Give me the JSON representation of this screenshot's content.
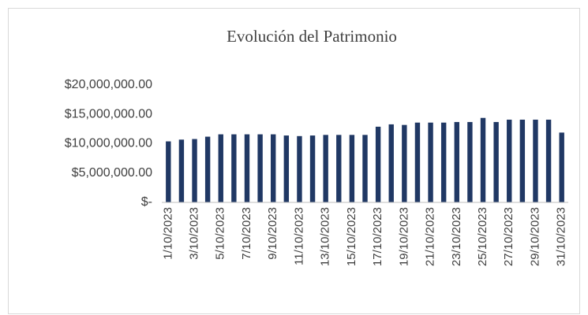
{
  "chart_data": {
    "type": "bar",
    "title": "Evolución del Patrimonio",
    "categories": [
      "1/10/2023",
      null,
      "3/10/2023",
      null,
      "5/10/2023",
      null,
      "7/10/2023",
      null,
      "9/10/2023",
      null,
      "11/10/2023",
      null,
      "13/10/2023",
      null,
      "15/10/2023",
      null,
      "17/10/2023",
      null,
      "19/10/2023",
      null,
      "21/10/2023",
      null,
      "23/10/2023",
      null,
      "25/10/2023",
      null,
      "27/10/2023",
      null,
      "29/10/2023",
      null,
      "31/10/2023"
    ],
    "values": [
      10400000,
      10700000,
      10800000,
      11200000,
      11600000,
      11600000,
      11600000,
      11600000,
      11600000,
      11400000,
      11300000,
      11400000,
      11500000,
      11500000,
      11500000,
      11500000,
      12900000,
      13300000,
      13200000,
      13600000,
      13600000,
      13600000,
      13700000,
      13700000,
      14400000,
      13700000,
      14100000,
      14100000,
      14100000,
      14100000,
      11900000
    ],
    "color": "#203864",
    "ylim": [
      0,
      20000000
    ],
    "yticks": [
      {
        "value": 0,
        "label": "$-"
      },
      {
        "value": 5000000,
        "label": "$5,000,000.00"
      },
      {
        "value": 10000000,
        "label": "$10,000,000.00"
      },
      {
        "value": 15000000,
        "label": "$15,000,000.00"
      },
      {
        "value": 20000000,
        "label": "$20,000,000.00"
      }
    ],
    "grid": false
  }
}
